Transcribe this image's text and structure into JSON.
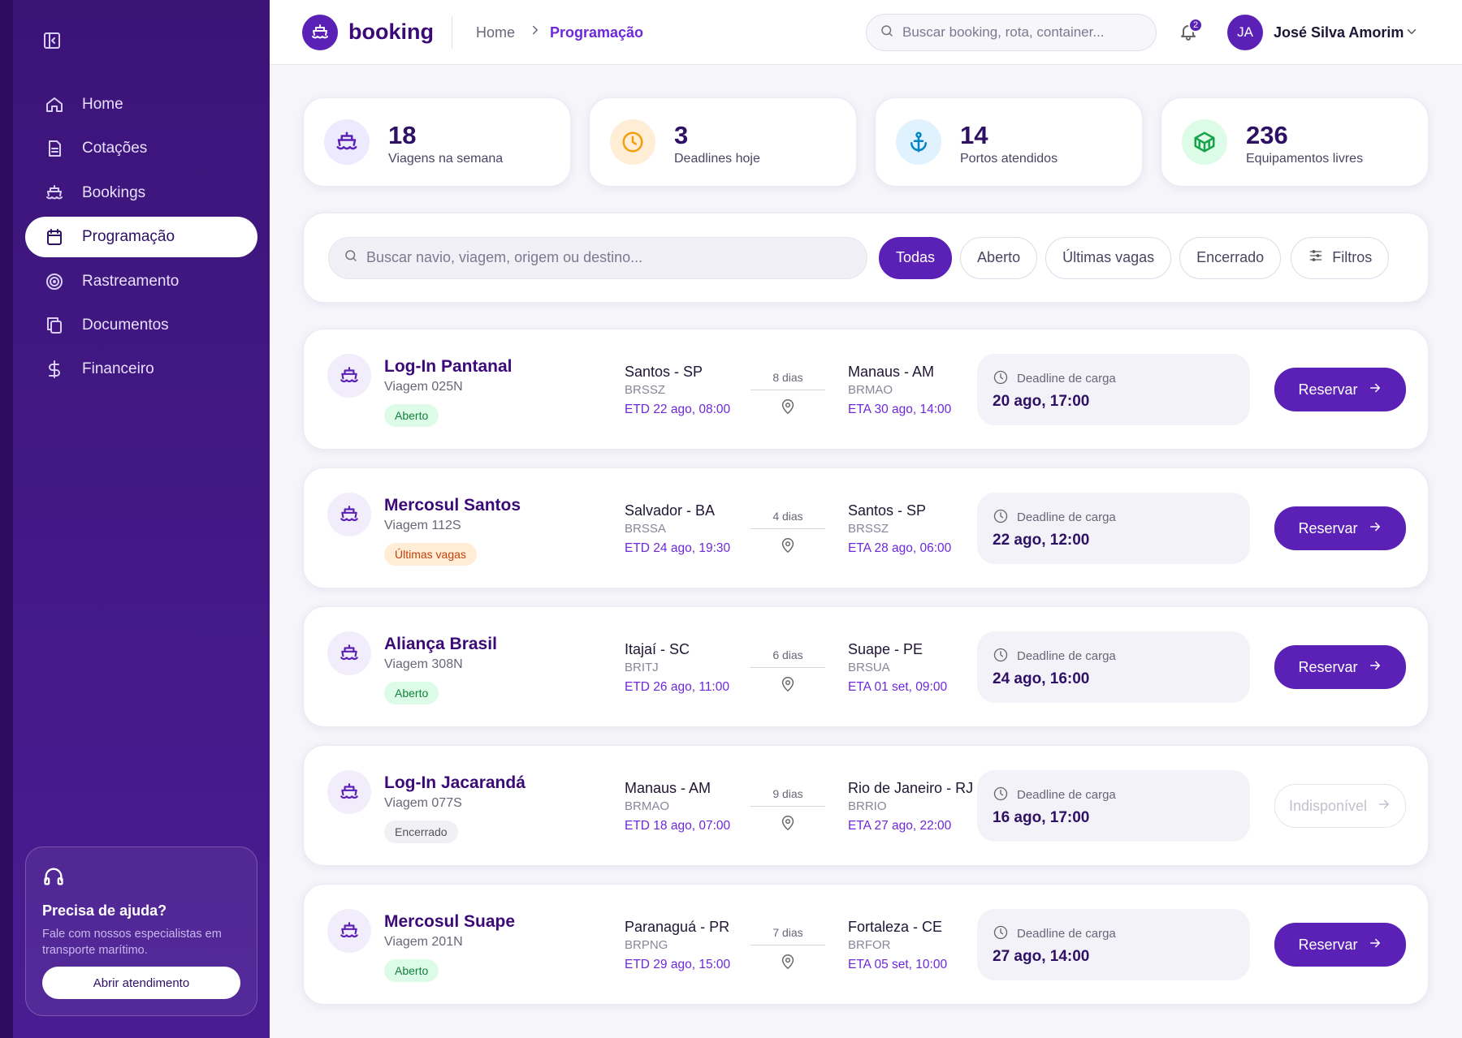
{
  "sidebar": {
    "nav": [
      "Home",
      "Cotações",
      "Bookings",
      "Programação",
      "Rastreamento",
      "Documentos",
      "Financeiro"
    ],
    "active_nav": 3,
    "help": {
      "title": "Precisa de ajuda?",
      "text": "Fale com nossos especialistas em transporte marítimo.",
      "button": "Abrir atendimento"
    }
  },
  "header": {
    "brand": "booking",
    "breadcrumb": [
      "Home",
      "Programação"
    ],
    "search": "Buscar booking, rota, container...",
    "notifications": 2,
    "user_initials": "JA",
    "user_name": "José Silva Amorim"
  },
  "stats": [
    {
      "value": 18,
      "label": "Viagens na semana"
    },
    {
      "value": 3,
      "label": "Deadlines hoje"
    },
    {
      "value": 14,
      "label": "Portos atendidos"
    },
    {
      "value": 236,
      "label": "Equipamentos livres"
    }
  ],
  "filters": {
    "search": "Buscar navio, viagem, origem ou destino...",
    "chips": [
      "Todas",
      "Aberto",
      "Últimas vagas",
      "Encerrado"
    ],
    "active_chip": 0,
    "more": "Filtros"
  },
  "voyages": [
    {
      "ship": "Log-In Pantanal",
      "voyage": "Viagem 025N",
      "status": "Aberto",
      "status_color": "green",
      "origin": "Santos - SP",
      "origin_code": "BRSSZ",
      "etd": "ETD 22 ago, 08:00",
      "duration": "8 dias",
      "destination": "Manaus - AM",
      "destination_code": "BRMAO",
      "eta": "ETA 30 ago, 14:00",
      "deadline_label": "Deadline de carga",
      "deadline": "20 ago, 17:00",
      "action": "Reservar",
      "available": true
    },
    {
      "ship": "Mercosul Santos",
      "voyage": "Viagem 112S",
      "status": "Últimas vagas",
      "status_color": "orange",
      "origin": "Salvador - BA",
      "origin_code": "BRSSA",
      "etd": "ETD 24 ago, 19:30",
      "duration": "4 dias",
      "destination": "Santos - SP",
      "destination_code": "BRSSZ",
      "eta": "ETA 28 ago, 06:00",
      "deadline_label": "Deadline de carga",
      "deadline": "22 ago, 12:00",
      "action": "Reservar",
      "available": true
    },
    {
      "ship": "Aliança Brasil",
      "voyage": "Viagem 308N",
      "status": "Aberto",
      "status_color": "green",
      "origin": "Itajaí - SC",
      "origin_code": "BRITJ",
      "etd": "ETD 26 ago, 11:00",
      "duration": "6 dias",
      "destination": "Suape - PE",
      "destination_code": "BRSUA",
      "eta": "ETA 01 set, 09:00",
      "deadline_label": "Deadline de carga",
      "deadline": "24 ago, 16:00",
      "action": "Reservar",
      "available": true
    },
    {
      "ship": "Log-In Jacarandá",
      "voyage": "Viagem 077S",
      "status": "Encerrado",
      "status_color": "gray",
      "origin": "Manaus - AM",
      "origin_code": "BRMAO",
      "etd": "ETD 18 ago, 07:00",
      "duration": "9 dias",
      "destination": "Rio de Janeiro - RJ",
      "destination_code": "BRRIO",
      "eta": "ETA 27 ago, 22:00",
      "deadline_label": "Deadline de carga",
      "deadline": "16 ago, 17:00",
      "action": "Indisponível",
      "available": false
    },
    {
      "ship": "Mercosul Suape",
      "voyage": "Viagem 201N",
      "status": "Aberto",
      "status_color": "green",
      "origin": "Paranaguá - PR",
      "origin_code": "BRPNG",
      "etd": "ETD 29 ago, 15:00",
      "duration": "7 dias",
      "destination": "Fortaleza - CE",
      "destination_code": "BRFOR",
      "eta": "ETA 05 set, 10:00",
      "deadline_label": "Deadline de carga",
      "deadline": "27 ago, 14:00",
      "action": "Reservar",
      "available": true
    }
  ]
}
